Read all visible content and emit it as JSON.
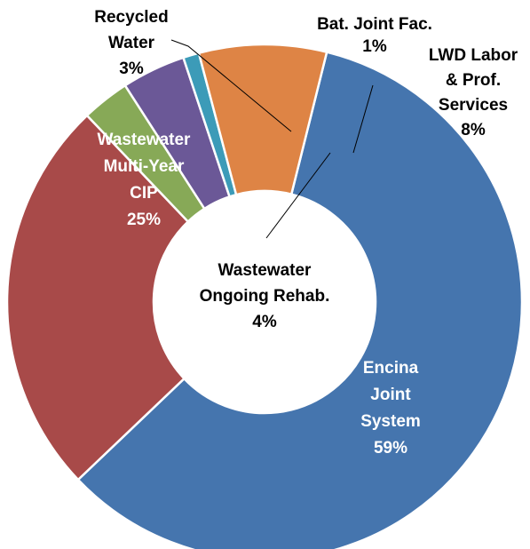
{
  "chart_data": {
    "type": "donut",
    "title": "",
    "slices": [
      {
        "label_lines": [
          "Encina",
          "Joint",
          "System",
          "59%"
        ],
        "value": 59,
        "color": "#4575AE"
      },
      {
        "label_lines": [
          "Wastewater",
          "Multi-Year",
          "CIP",
          "25%"
        ],
        "value": 25,
        "color": "#A84A49"
      },
      {
        "label_lines": [
          "Recycled",
          "Water",
          "3%"
        ],
        "value": 3,
        "color": "#87A957"
      },
      {
        "label_lines": [
          "Wastewater",
          "Ongoing Rehab.",
          "4%"
        ],
        "value": 4,
        "color": "#6B5897"
      },
      {
        "label_lines": [
          "Bat. Joint Fac.",
          "1%"
        ],
        "value": 1,
        "color": "#3C9BB8"
      },
      {
        "label_lines": [
          "LWD Labor",
          "& Prof.",
          "Services",
          "8%"
        ],
        "value": 8,
        "color": "#DE8445"
      }
    ],
    "label_colors": {
      "inside": "#ffffff",
      "outside": "#000000"
    }
  }
}
